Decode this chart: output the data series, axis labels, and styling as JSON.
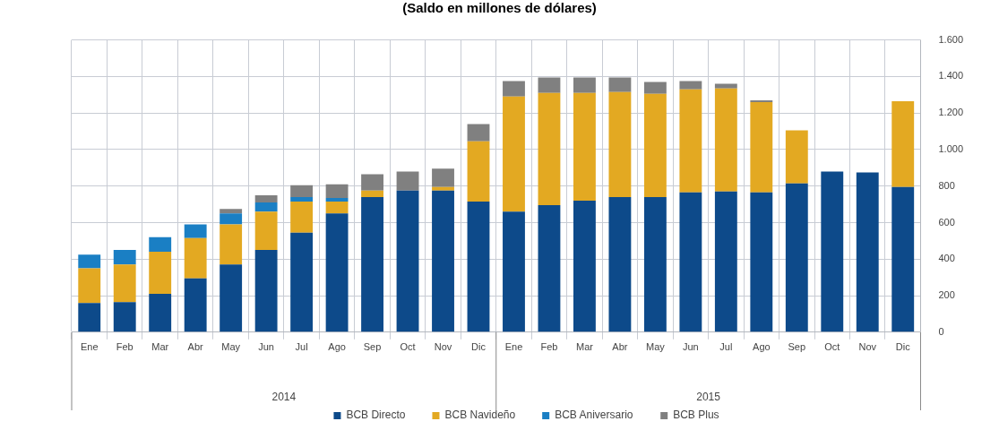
{
  "chart_data": {
    "type": "bar",
    "stacked": true,
    "title": "(Saldo en millones de dólares)",
    "categories": [
      "Ene",
      "Feb",
      "Mar",
      "Abr",
      "May",
      "Jun",
      "Jul",
      "Ago",
      "Sep",
      "Oct",
      "Nov",
      "Dic",
      "Ene",
      "Feb",
      "Mar",
      "Abr",
      "May",
      "Jun",
      "Jul",
      "Ago",
      "Sep",
      "Oct",
      "Nov",
      "Dic"
    ],
    "series": [
      {
        "name": "BCB Directo",
        "color": "#0d4a8a",
        "values": [
          160,
          165,
          210,
          295,
          370,
          450,
          545,
          650,
          740,
          775,
          775,
          715,
          660,
          695,
          720,
          740,
          740,
          765,
          770,
          765,
          815,
          880,
          875,
          795
        ]
      },
      {
        "name": "BCB Navideño",
        "color": "#e3a922",
        "values": [
          190,
          205,
          230,
          220,
          220,
          210,
          170,
          65,
          35,
          0,
          20,
          330,
          630,
          615,
          590,
          575,
          565,
          565,
          565,
          495,
          290,
          0,
          0,
          470
        ]
      },
      {
        "name": "BCB Aniversario",
        "color": "#1a7fc4",
        "values": [
          75,
          80,
          80,
          75,
          60,
          50,
          25,
          20,
          0,
          0,
          0,
          0,
          0,
          0,
          0,
          0,
          0,
          0,
          0,
          0,
          0,
          0,
          0,
          0
        ]
      },
      {
        "name": "BCB Plus",
        "color": "#808080",
        "values": [
          0,
          0,
          0,
          0,
          25,
          40,
          65,
          75,
          90,
          105,
          100,
          95,
          85,
          85,
          85,
          80,
          65,
          45,
          25,
          10,
          0,
          0,
          0,
          0
        ]
      }
    ],
    "ylim": [
      0,
      1600
    ],
    "yticks": [
      0,
      200,
      400,
      600,
      800,
      {
        "value": 1000,
        "label": "1.000"
      },
      {
        "value": 1200,
        "label": "1.200"
      },
      {
        "value": 1400,
        "label": "1.400"
      },
      {
        "value": 1600,
        "label": "1.600"
      }
    ],
    "annotations": [
      "2014",
      "2015"
    ],
    "grid": true,
    "legend": "bottom"
  }
}
